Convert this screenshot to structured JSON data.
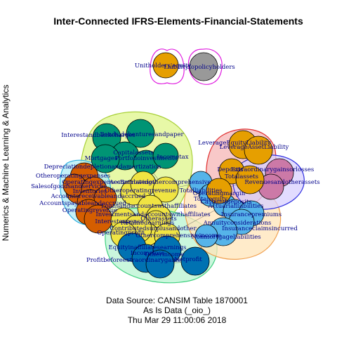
{
  "title": "Inter-Connected IFRS-Elements-Financial-Statements",
  "ylabel": "Numerics & Machine Learning & Analytics",
  "footer": {
    "source": "Data Source: CANSIM Table 1870001",
    "note": "As Is Data (_oio_)",
    "timestamp": "Thu Mar 29 11:00:06 2018"
  },
  "colors": {
    "teal": "#009474",
    "orange": "#e69f00",
    "burnt": "#d55e00",
    "sky": "#56b4e9",
    "blue": "#0072b2",
    "yellow": "#f0e442",
    "grey": "#999999",
    "purple": "#cc79a7",
    "label": "#00008b"
  },
  "groups": [
    {
      "name": "policyholders",
      "fill": "none",
      "stroke": "#e020e0"
    },
    {
      "name": "leverage",
      "fill": "#f6b5b5",
      "stroke": "#e03030"
    },
    {
      "name": "gains",
      "fill": "#d8d0ff",
      "stroke": "#3030e0"
    },
    {
      "name": "green-hull",
      "fill": "#dff58a",
      "stroke": "#a8d038"
    },
    {
      "name": "cyan-hull",
      "fill": "#b0ecf4",
      "stroke": "#30b0e0"
    },
    {
      "name": "mint-hull",
      "fill": "#b8f4d2",
      "stroke": "#40d080"
    },
    {
      "name": "peach-hull",
      "fill": "#ffe4b8",
      "stroke": "#f0a050"
    }
  ],
  "nodes": [
    {
      "label": "Unitholders'equity",
      "color": "orange"
    },
    {
      "label": "Liabilitytopolicyholders",
      "color": "grey"
    },
    {
      "label": "Interestandbankcharges",
      "color": "teal"
    },
    {
      "label": "Bonds,debenturesandpaper",
      "color": "teal"
    },
    {
      "label": "Capitalassets",
      "color": "teal"
    },
    {
      "label": "Mortgages",
      "color": "teal"
    },
    {
      "label": "Portfolioinvestments",
      "color": "teal"
    },
    {
      "label": "Incometax",
      "color": "teal"
    },
    {
      "label": "Depreciationdepletionandamortization",
      "color": "burnt"
    },
    {
      "label": "Otheroperatingexpenses",
      "color": "burnt"
    },
    {
      "label": "Salesofgoodsandservices",
      "color": "burnt"
    },
    {
      "label": "Operatingexpenses",
      "color": "burnt"
    },
    {
      "label": "Inventories",
      "color": "burnt"
    },
    {
      "label": "Accountsreceivableandaccrued",
      "color": "burnt"
    },
    {
      "label": "Accountspayableandaccrued",
      "color": "burnt"
    },
    {
      "label": "Operatingrevenue",
      "color": "burnt"
    },
    {
      "label": "Otheroperatingrevenue",
      "color": "yellow"
    },
    {
      "label": "Borrowings",
      "color": "yellow"
    },
    {
      "label": "Accumulatedothercomprehensive",
      "color": "yellow"
    },
    {
      "label": "Loansandaccountswithaffiliates",
      "color": "yellow"
    },
    {
      "label": "Investmentsandaccountswithaffiliates",
      "color": "yellow"
    },
    {
      "label": "Interestexpense",
      "color": "yellow"
    },
    {
      "label": "Otherassets",
      "color": "yellow"
    },
    {
      "label": "Retainedearnings",
      "color": "yellow"
    },
    {
      "label": "Contributedsurplusandother",
      "color": "yellow"
    },
    {
      "label": "Operatingprofit",
      "color": "yellow"
    },
    {
      "label": "Othercomprehensiveincome",
      "color": "yellow"
    },
    {
      "label": "Equityinaffiliatesearnings",
      "color": "blue"
    },
    {
      "label": "Incomeloss",
      "color": "blue"
    },
    {
      "label": "Otherincome",
      "color": "blue"
    },
    {
      "label": "Profitbeforeextraordinarygains",
      "color": "blue"
    },
    {
      "label": "Netprofit",
      "color": "blue"
    },
    {
      "label": "Totalliabilities",
      "color": "sky"
    },
    {
      "label": "Totalequity",
      "color": "sky"
    },
    {
      "label": "Cashanddeposits",
      "color": "sky"
    },
    {
      "label": "LeverageEquityLiability",
      "color": "orange"
    },
    {
      "label": "LeverageAssetLiability",
      "color": "orange"
    },
    {
      "label": "Deposits",
      "color": "orange"
    },
    {
      "label": "Extraordinarygainsorlosses",
      "color": "purple"
    },
    {
      "label": "Revenuesandotherassets",
      "color": "purple"
    },
    {
      "label": "Totalassets",
      "color": "orange"
    },
    {
      "label": "Operatingmargin",
      "color": "orange"
    },
    {
      "label": "Actuarialliabilities",
      "color": "sky"
    },
    {
      "label": "Insurancepremiums",
      "color": "sky"
    },
    {
      "label": "Annuityconsiderations",
      "color": "sky"
    },
    {
      "label": "Insuranceclaimsincurred",
      "color": "sky"
    },
    {
      "label": "Nonmortgageliabilities",
      "color": "sky"
    }
  ]
}
